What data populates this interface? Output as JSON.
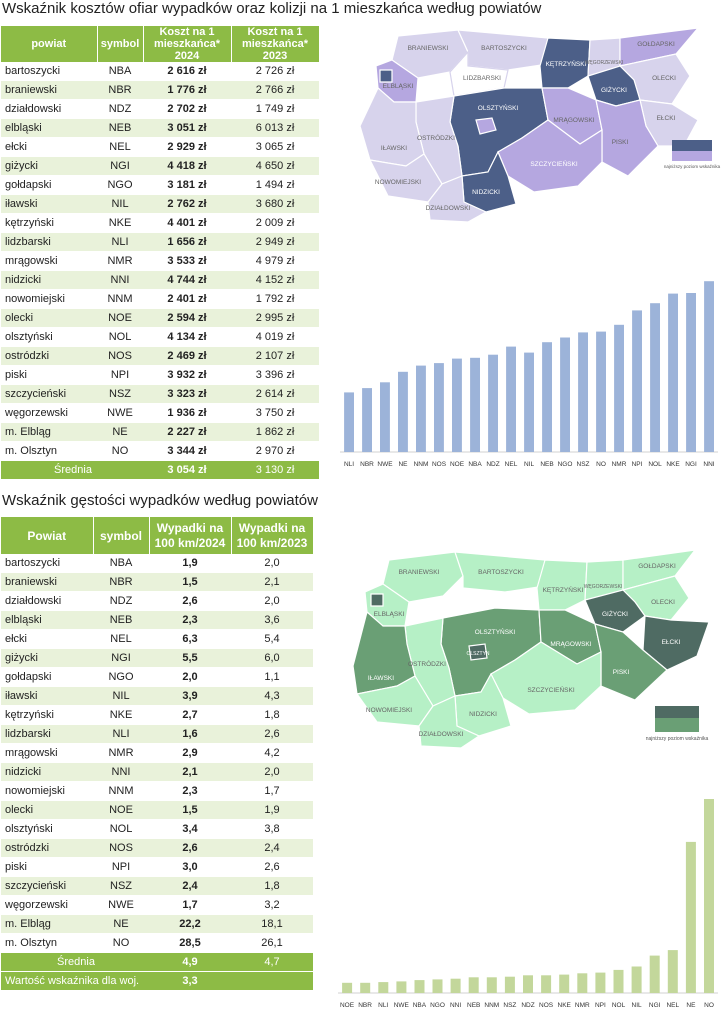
{
  "section1": {
    "title": "Wskaźnik kosztów ofiar wypadków oraz kolizji na 1 mieszkańca według powiatów",
    "headers": {
      "c1": "powiat",
      "c2": "symbol",
      "c3": "Koszt na 1 mieszkańca* 2024",
      "c4": "Koszt na 1 mieszkańca* 2023"
    },
    "rows": [
      {
        "name": "bartoszycki",
        "sym": "NBA",
        "v24": "2 616 zł",
        "v23": "2 726 zł"
      },
      {
        "name": "braniewski",
        "sym": "NBR",
        "v24": "1 776 zł",
        "v23": "2 766 zł"
      },
      {
        "name": "działdowski",
        "sym": "NDZ",
        "v24": "2 702 zł",
        "v23": "1 749 zł"
      },
      {
        "name": "elbląski",
        "sym": "NEB",
        "v24": "3 051 zł",
        "v23": "6 013 zł"
      },
      {
        "name": "ełcki",
        "sym": "NEL",
        "v24": "2 929 zł",
        "v23": "3 065 zł"
      },
      {
        "name": "giżycki",
        "sym": "NGI",
        "v24": "4 418 zł",
        "v23": "4 650 zł"
      },
      {
        "name": "gołdapski",
        "sym": "NGO",
        "v24": "3 181 zł",
        "v23": "1 494 zł"
      },
      {
        "name": "iławski",
        "sym": "NIL",
        "v24": "2 762 zł",
        "v23": "3 680 zł"
      },
      {
        "name": "kętrzyński",
        "sym": "NKE",
        "v24": "4 401 zł",
        "v23": "2 009 zł"
      },
      {
        "name": "lidzbarski",
        "sym": "NLI",
        "v24": "1 656 zł",
        "v23": "2 949 zł"
      },
      {
        "name": "mrągowski",
        "sym": "NMR",
        "v24": "3 533 zł",
        "v23": "4 979 zł"
      },
      {
        "name": "nidzicki",
        "sym": "NNI",
        "v24": "4 744 zł",
        "v23": "4 152 zł"
      },
      {
        "name": "nowomiejski",
        "sym": "NNM",
        "v24": "2 401 zł",
        "v23": "1 792 zł"
      },
      {
        "name": "olecki",
        "sym": "NOE",
        "v24": "2 594 zł",
        "v23": "2 995 zł"
      },
      {
        "name": "olsztyński",
        "sym": "NOL",
        "v24": "4 134 zł",
        "v23": "4 019 zł"
      },
      {
        "name": "ostródzki",
        "sym": "NOS",
        "v24": "2 469 zł",
        "v23": "2 107 zł"
      },
      {
        "name": "piski",
        "sym": "NPI",
        "v24": "3 932 zł",
        "v23": "3 396 zł"
      },
      {
        "name": "szczycieński",
        "sym": "NSZ",
        "v24": "3 323 zł",
        "v23": "2 614 zł"
      },
      {
        "name": "węgorzewski",
        "sym": "NWE",
        "v24": "1 936 zł",
        "v23": "3 750 zł"
      },
      {
        "name": "m. Elbląg",
        "sym": "NE",
        "v24": "2 227 zł",
        "v23": "1 862 zł"
      },
      {
        "name": "m. Olsztyn",
        "sym": "NO",
        "v24": "3 344 zł",
        "v23": "2 970 zł"
      }
    ],
    "avg": {
      "label": "Średnia",
      "v24": "3 054 zł",
      "v23": "3 130 zł"
    },
    "map": {
      "labels": [
        "BRANIEWSKI",
        "BARTOSZYCKI",
        "GOŁDAPSKI",
        "KĘTRZYŃSKI",
        "WĘGORZEWSKI",
        "ELBLĄSKI",
        "LIDZBARSKI",
        "OLECKI",
        "GIŻYCKI",
        "OLSZTYŃSKI",
        "MRĄGOWSKI",
        "EŁCKI",
        "IŁAWSKI",
        "OSTRÓDZKI",
        "PISKI",
        "SZCZYCIEŃSKI",
        "NOWOMIEJSKI",
        "NIDZICKI",
        "DZIAŁDOWSKI"
      ],
      "legend": "najniższy poziom wskaźnika"
    }
  },
  "section2": {
    "title": "Wskaźnik gęstości wypadków według powiatów",
    "headers": {
      "c1": "Powiat",
      "c2": "symbol",
      "c3": "Wypadki na 100 km/2024",
      "c4": "Wypadki na 100 km/2023"
    },
    "rows": [
      {
        "name": "bartoszycki",
        "sym": "NBA",
        "v24": "1,9",
        "v23": "2,0"
      },
      {
        "name": "braniewski",
        "sym": "NBR",
        "v24": "1,5",
        "v23": "2,1"
      },
      {
        "name": "działdowski",
        "sym": "NDZ",
        "v24": "2,6",
        "v23": "2,0"
      },
      {
        "name": "elbląski",
        "sym": "NEB",
        "v24": "2,3",
        "v23": "3,6"
      },
      {
        "name": "ełcki",
        "sym": "NEL",
        "v24": "6,3",
        "v23": "5,4"
      },
      {
        "name": "giżycki",
        "sym": "NGI",
        "v24": "5,5",
        "v23": "6,0"
      },
      {
        "name": "gołdapski",
        "sym": "NGO",
        "v24": "2,0",
        "v23": "1,1"
      },
      {
        "name": "iławski",
        "sym": "NIL",
        "v24": "3,9",
        "v23": "4,3"
      },
      {
        "name": "kętrzyński",
        "sym": "NKE",
        "v24": "2,7",
        "v23": "1,8"
      },
      {
        "name": "lidzbarski",
        "sym": "NLI",
        "v24": "1,6",
        "v23": "2,6"
      },
      {
        "name": "mrągowski",
        "sym": "NMR",
        "v24": "2,9",
        "v23": "4,2"
      },
      {
        "name": "nidzicki",
        "sym": "NNI",
        "v24": "2,1",
        "v23": "2,0"
      },
      {
        "name": "nowomiejski",
        "sym": "NNM",
        "v24": "2,3",
        "v23": "1,7"
      },
      {
        "name": "olecki",
        "sym": "NOE",
        "v24": "1,5",
        "v23": "1,9"
      },
      {
        "name": "olsztyński",
        "sym": "NOL",
        "v24": "3,4",
        "v23": "3,8"
      },
      {
        "name": "ostródzki",
        "sym": "NOS",
        "v24": "2,6",
        "v23": "2,4"
      },
      {
        "name": "piski",
        "sym": "NPI",
        "v24": "3,0",
        "v23": "2,6"
      },
      {
        "name": "szczycieński",
        "sym": "NSZ",
        "v24": "2,4",
        "v23": "1,8"
      },
      {
        "name": "węgorzewski",
        "sym": "NWE",
        "v24": "1,7",
        "v23": "3,2"
      },
      {
        "name": "m. Elbląg",
        "sym": "NE",
        "v24": "22,2",
        "v23": "18,1"
      },
      {
        "name": "m. Olsztyn",
        "sym": "NO",
        "v24": "28,5",
        "v23": "26,1"
      }
    ],
    "avg": {
      "label": "Średnia",
      "v24": "4,9",
      "v23": "4,7"
    },
    "woj": {
      "label": "Wartość wskaźnika dla woj.",
      "v24": "3,3"
    },
    "map": {
      "labels": [
        "BRANIEWSKI",
        "BARTOSZYCKI",
        "GOŁDAPSKI",
        "KĘTRZYŃSKI",
        "WĘGORZEWSKI",
        "ELBLĄSKI",
        "OLECKI",
        "GIŻYCKI",
        "OLSZTYŃSKI",
        "OLSZTYN",
        "MRĄGOWSKI",
        "EŁCKI",
        "IŁAWSKI",
        "OSTRÓDZKI",
        "PISKI",
        "SZCZYCIEŃSKI",
        "NOWOMIEJSKI",
        "NIDZICKI",
        "DZIAŁDOWSKI"
      ],
      "legend": "najniższy poziom wskaźnika"
    }
  },
  "chart_data": [
    {
      "type": "bar",
      "categories": [
        "NLI",
        "NBR",
        "NWE",
        "NE",
        "NNM",
        "NOS",
        "NOE",
        "NBA",
        "NDZ",
        "NEL",
        "NIL",
        "NEB",
        "NGO",
        "NSZ",
        "NO",
        "NMR",
        "NPI",
        "NOL",
        "NKE",
        "NGI",
        "NNI"
      ],
      "values": [
        1656,
        1776,
        1936,
        2227,
        2401,
        2469,
        2594,
        2616,
        2702,
        2929,
        2762,
        3051,
        3181,
        3323,
        3344,
        3533,
        3932,
        4134,
        4401,
        4418,
        4744
      ],
      "ylim": [
        0,
        5000
      ],
      "color": "#9cb3d9"
    },
    {
      "type": "bar",
      "categories": [
        "NOE",
        "NBR",
        "NLI",
        "NWE",
        "NBA",
        "NGO",
        "NNI",
        "NEB",
        "NNM",
        "NSZ",
        "NDZ",
        "NOS",
        "NKE",
        "NMR",
        "NPI",
        "NOL",
        "NIL",
        "NGI",
        "NEL",
        "NE",
        "NO"
      ],
      "values": [
        1.5,
        1.5,
        1.6,
        1.7,
        1.9,
        2.0,
        2.1,
        2.3,
        2.3,
        2.4,
        2.6,
        2.6,
        2.7,
        2.9,
        3.0,
        3.4,
        3.9,
        5.5,
        6.3,
        22.2,
        28.5
      ],
      "ylim": [
        0,
        28.5
      ],
      "color": "#c3d79b"
    }
  ]
}
